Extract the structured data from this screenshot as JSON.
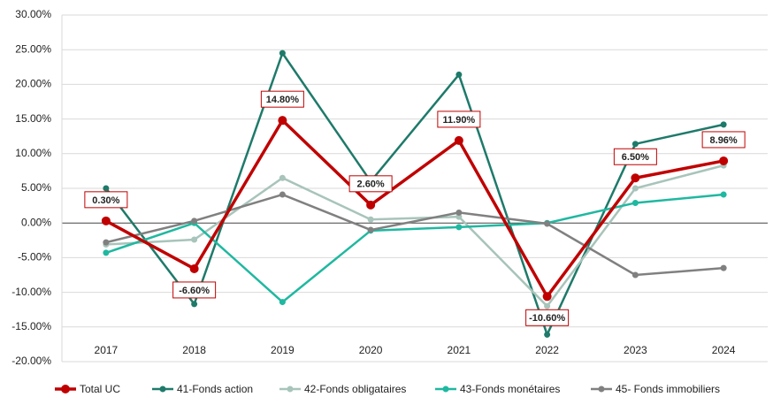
{
  "chart_data": {
    "type": "line",
    "categories": [
      "2017",
      "2018",
      "2019",
      "2020",
      "2021",
      "2022",
      "2023",
      "2024"
    ],
    "series": [
      {
        "name": "Total UC",
        "color": "#c00000",
        "values": [
          0.3,
          -6.6,
          14.8,
          2.6,
          11.9,
          -10.6,
          6.5,
          8.96
        ],
        "value_labels": [
          "0.30%",
          "-6.60%",
          "14.80%",
          "2.60%",
          "11.90%",
          "-10.60%",
          "6.50%",
          "8.96%"
        ]
      },
      {
        "name": "41-Fonds action",
        "color": "#1e7a6a",
        "values": [
          5.0,
          -11.7,
          24.5,
          6.0,
          21.4,
          -16.1,
          11.4,
          14.2
        ]
      },
      {
        "name": "42-Fonds obligataires",
        "color": "#a8c4bb",
        "values": [
          -3.1,
          -2.4,
          6.5,
          0.5,
          0.9,
          -12.0,
          5.0,
          8.3
        ]
      },
      {
        "name": "43-Fonds monétaires",
        "color": "#1fb8a0",
        "values": [
          -4.3,
          0.0,
          -11.4,
          -1.1,
          -0.6,
          0.0,
          2.9,
          4.1
        ]
      },
      {
        "name": "45- Fonds immobiliers",
        "color": "#808080",
        "values": [
          -2.8,
          0.3,
          4.1,
          -1.0,
          1.5,
          -0.1,
          -7.5,
          -6.5
        ]
      }
    ],
    "ylim": [
      -20,
      30
    ],
    "yticks": [
      {
        "value": -20,
        "label": "-20.00%"
      },
      {
        "value": -15,
        "label": "-15.00%"
      },
      {
        "value": -10,
        "label": "-10.00%"
      },
      {
        "value": -5,
        "label": "-5.00%"
      },
      {
        "value": 0,
        "label": "0.00%"
      },
      {
        "value": 5,
        "label": "5.00%"
      },
      {
        "value": 10,
        "label": "10.00%"
      },
      {
        "value": 15,
        "label": "15.00%"
      },
      {
        "value": 20,
        "label": "20.00%"
      },
      {
        "value": 25,
        "label": "25.00%"
      },
      {
        "value": 30,
        "label": "30.00%"
      }
    ],
    "grid": true
  }
}
